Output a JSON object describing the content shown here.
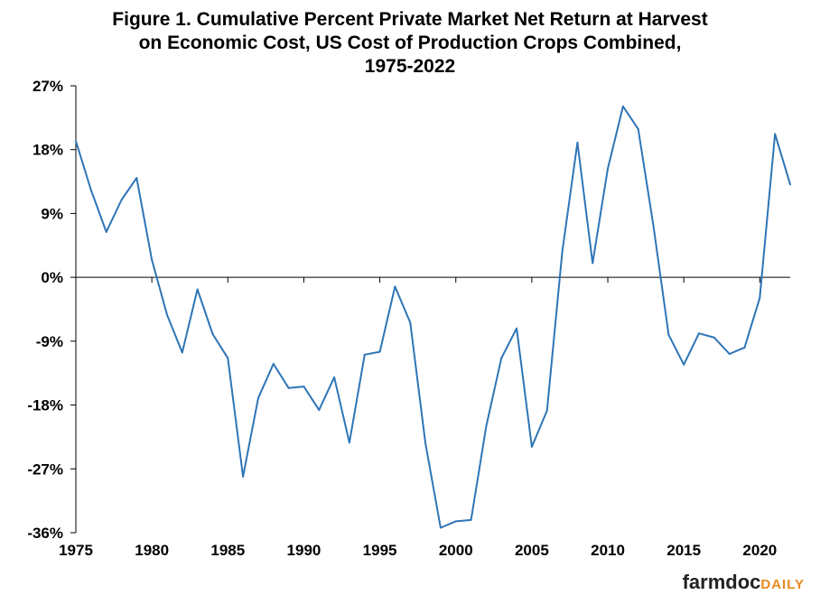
{
  "chart_data": {
    "type": "line",
    "title_lines": [
      "Figure 1. Cumulative Percent Private Market Net Return at Harvest",
      "on Economic Cost, US Cost of Production Crops Combined,",
      "1975-2022"
    ],
    "xlabel": "",
    "ylabel": "",
    "xlim": [
      1975,
      2022
    ],
    "ylim": [
      -36,
      27
    ],
    "x_ticks": [
      1975,
      1980,
      1985,
      1990,
      1995,
      2000,
      2005,
      2010,
      2015,
      2020
    ],
    "x_tick_labels": [
      "1975",
      "1980",
      "1985",
      "1990",
      "1995",
      "2000",
      "2005",
      "2010",
      "2015",
      "2020"
    ],
    "y_ticks": [
      27,
      18,
      9,
      0,
      -9,
      -18,
      -27,
      -36
    ],
    "y_tick_labels": [
      "27%",
      "18%",
      "9%",
      "0%",
      "-9%",
      "-18%",
      "-27%",
      "-36%"
    ],
    "grid": false,
    "legend": "none",
    "line_color": "#2e75b6",
    "series": [
      {
        "x": [
          1975,
          1976,
          1977,
          1978,
          1979,
          1980,
          1981,
          1982,
          1983,
          1984,
          1985,
          1986,
          1987,
          1988,
          1989,
          1990,
          1991,
          1992,
          1993,
          1994,
          1995,
          1996,
          1997,
          1998,
          1999,
          2000,
          2001,
          2002,
          2003,
          2004,
          2005,
          2006,
          2007,
          2008,
          2009,
          2010,
          2011,
          2012,
          2013,
          2014,
          2015,
          2016,
          2017,
          2018,
          2019,
          2020,
          2021,
          2022
        ],
        "values": [
          19.2,
          12.3,
          6.4,
          10.9,
          14.0,
          2.5,
          -5.3,
          -10.6,
          -1.7,
          -8.0,
          -11.4,
          -28.1,
          -17.0,
          -12.2,
          -15.6,
          -15.4,
          -18.7,
          -14.1,
          -23.3,
          -10.9,
          -10.5,
          -1.3,
          -6.4,
          -23.4,
          -35.3,
          -34.4,
          -34.2,
          -21.0,
          -11.4,
          -7.2,
          -23.9,
          -18.8,
          3.6,
          19.0,
          2.0,
          15.3,
          24.1,
          20.9,
          7.3,
          -8.1,
          -12.3,
          -7.9,
          -8.5,
          -10.8,
          -9.9,
          -2.9,
          20.2,
          13.1
        ]
      }
    ]
  },
  "brand": {
    "part1": "farmdoc",
    "part2": "DAILY"
  }
}
